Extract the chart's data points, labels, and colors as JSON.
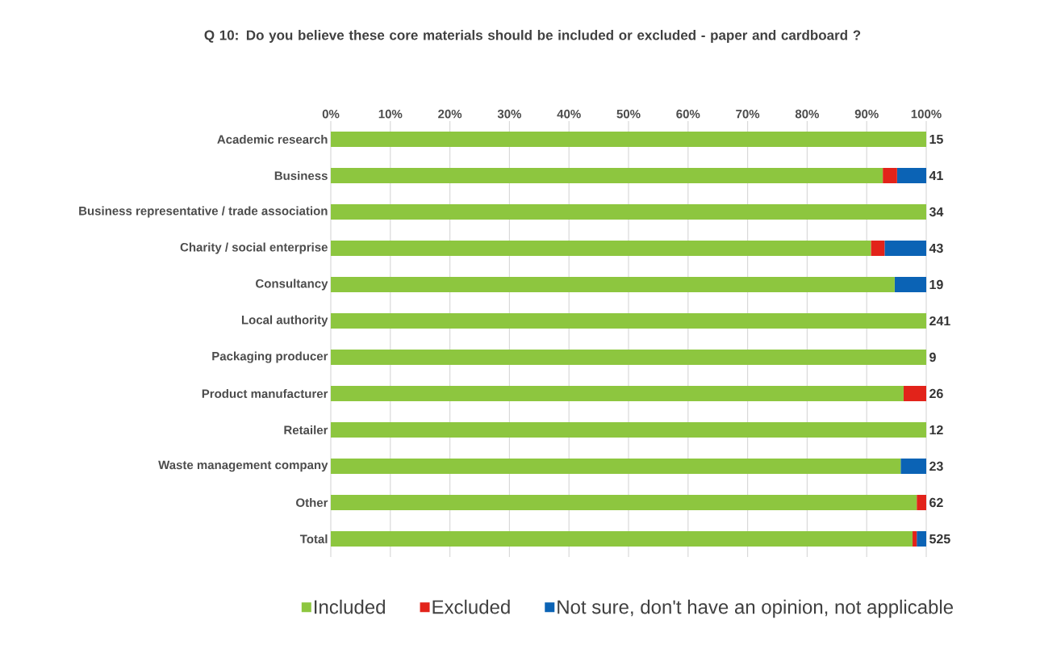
{
  "chart_data": {
    "type": "bar",
    "orientation": "horizontal",
    "stacked": true,
    "title": "Q 10: Do you believe these core materials should be included or excluded - paper and cardboard ?",
    "categories": [
      "Academic research",
      "Business",
      "Business representative / trade association",
      "Charity / social enterprise",
      "Consultancy",
      "Local authority",
      "Packaging producer",
      "Product manufacturer",
      "Retailer",
      "Waste management company",
      "Other",
      "Total"
    ],
    "series": [
      {
        "name": "Included",
        "color": "#8dc63f",
        "values": [
          100,
          92.7,
          100,
          90.7,
          94.7,
          100,
          100,
          96.2,
          100,
          95.7,
          98.4,
          97.7
        ]
      },
      {
        "name": "Excluded",
        "color": "#e2231a",
        "values": [
          0,
          2.4,
          0,
          2.3,
          0,
          0,
          0,
          3.8,
          0,
          0,
          1.6,
          0.7
        ]
      },
      {
        "name": "Not sure, don't have an opinion, not applicable",
        "color": "#0b63b5",
        "values": [
          0,
          4.9,
          0,
          7.0,
          5.3,
          0,
          0,
          0,
          0,
          4.3,
          0,
          1.6
        ]
      }
    ],
    "xlim": [
      0,
      100
    ],
    "xticks": [
      {
        "value": 0,
        "label": "0%"
      },
      {
        "value": 10,
        "label": "10%"
      },
      {
        "value": 20,
        "label": "20%"
      },
      {
        "value": 30,
        "label": "30%"
      },
      {
        "value": 40,
        "label": "40%"
      },
      {
        "value": 50,
        "label": "50%"
      },
      {
        "value": 60,
        "label": "60%"
      },
      {
        "value": 70,
        "label": "70%"
      },
      {
        "value": 80,
        "label": "80%"
      },
      {
        "value": 90,
        "label": "90%"
      },
      {
        "value": 100,
        "label": "100%"
      }
    ],
    "grid": "x",
    "legend": "bottom",
    "annotations": [
      "15",
      "41",
      "34",
      "43",
      "19",
      "241",
      "9",
      "26",
      "12",
      "23",
      "62",
      "525"
    ]
  }
}
